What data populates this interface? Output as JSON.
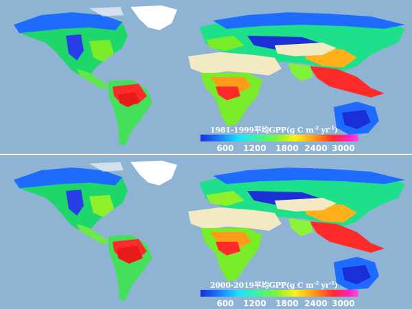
{
  "panels": [
    {
      "title_main": "1981-1999平均GPP(g C m",
      "title_sup1": "-2",
      "title_mid": " yr",
      "title_sup2": "-1",
      "title_end": ")"
    },
    {
      "title_main": "2000-2019平均GPP(g C m",
      "title_sup1": "-2",
      "title_mid": " yr",
      "title_sup2": "-1",
      "title_end": ")"
    }
  ],
  "colorbar": {
    "ticks": [
      "600",
      "1200",
      "1800",
      "2400",
      "3000"
    ]
  },
  "colors": {
    "ocean": "#8fb4d3",
    "ice": "#ffffff",
    "desert": "#f3e9c2",
    "low_gpp": "#1a2fd6",
    "high_gpp": "#ff2a2a"
  }
}
